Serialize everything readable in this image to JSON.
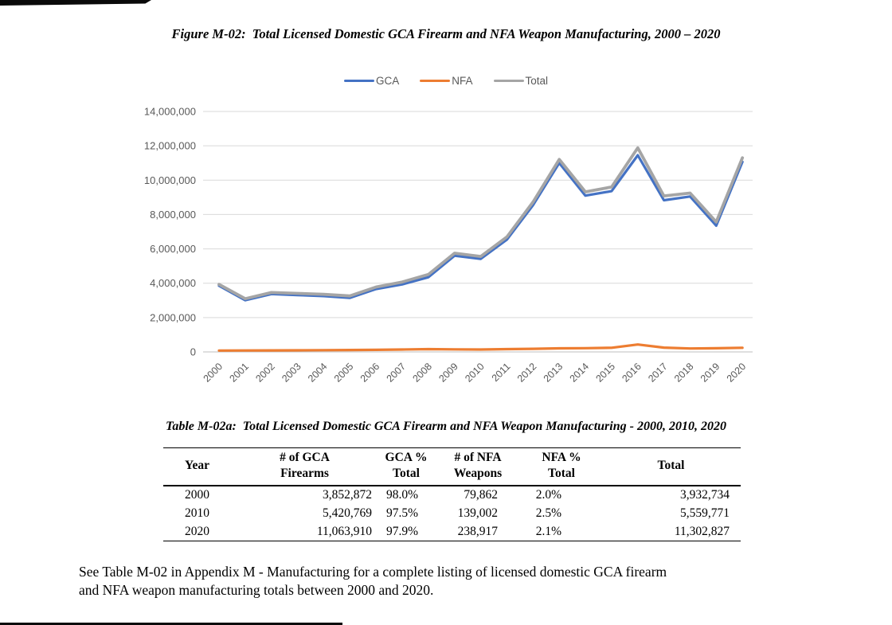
{
  "page": {
    "figure_title": "Figure M-02:  Total Licensed Domestic GCA Firearm and NFA Weapon Manufacturing, 2000 – 2020",
    "table_title": "Table M-02a:  Total Licensed Domestic GCA Firearm and NFA Weapon Manufacturing - 2000, 2010, 2020",
    "note_lines": [
      "See Table M-02 in Appendix M - Manufacturing for a complete listing of licensed domestic GCA firearm",
      "and NFA weapon manufacturing totals between 2000 and 2020."
    ]
  },
  "chart_data": {
    "type": "line",
    "title": "Figure M-02: Total Licensed Domestic GCA Firearm and NFA Weapon Manufacturing, 2000 – 2020",
    "categories": [
      "2000",
      "2001",
      "2002",
      "2003",
      "2004",
      "2005",
      "2006",
      "2007",
      "2008",
      "2009",
      "2010",
      "2011",
      "2012",
      "2013",
      "2014",
      "2015",
      "2016",
      "2017",
      "2018",
      "2019",
      "2020"
    ],
    "series": [
      {
        "name": "GCA",
        "color": "#4472C4",
        "values": [
          3852872,
          3010000,
          3370000,
          3310000,
          3250000,
          3150000,
          3660000,
          3930000,
          4350000,
          5600000,
          5420769,
          6540000,
          8550000,
          11000000,
          9100000,
          9360000,
          11450000,
          8830000,
          9050000,
          7350000,
          11063910
        ]
      },
      {
        "name": "NFA",
        "color": "#ED7D31",
        "values": [
          79862,
          85000,
          90000,
          95000,
          100000,
          110000,
          120000,
          140000,
          160000,
          150000,
          139002,
          160000,
          180000,
          210000,
          220000,
          240000,
          430000,
          250000,
          200000,
          215000,
          238917
        ]
      },
      {
        "name": "Total",
        "color": "#A5A5A5",
        "values": [
          3932734,
          3095000,
          3460000,
          3405000,
          3350000,
          3260000,
          3780000,
          4070000,
          4510000,
          5750000,
          5559771,
          6700000,
          8730000,
          11210000,
          9320000,
          9600000,
          11880000,
          9080000,
          9250000,
          7565000,
          11302827
        ]
      }
    ],
    "ylim": [
      0,
      14000000
    ],
    "y_ticks": [
      0,
      2000000,
      4000000,
      6000000,
      8000000,
      10000000,
      12000000,
      14000000
    ],
    "y_tick_labels": [
      "0",
      "2,000,000",
      "4,000,000",
      "6,000,000",
      "8,000,000",
      "10,000,000",
      "12,000,000",
      "14,000,000"
    ],
    "xlabel": "",
    "ylabel": "",
    "grid": "horizontal",
    "legend_position": "top",
    "text_color": "#595959",
    "grid_color": "#D9D9D9",
    "axis_line_color": "#BFBFBF"
  },
  "table": {
    "columns": [
      "Year",
      "# of GCA\nFirearms",
      "GCA %\nTotal",
      "# of NFA\nWeapons",
      "NFA %\nTotal",
      "Total"
    ],
    "rows": [
      [
        "2000",
        "3,852,872",
        "98.0%",
        "79,862",
        "2.0%",
        "3,932,734"
      ],
      [
        "2010",
        "5,420,769",
        "97.5%",
        "139,002",
        "2.5%",
        "5,559,771"
      ],
      [
        "2020",
        "11,063,910",
        "97.9%",
        "238,917",
        "2.1%",
        "11,302,827"
      ]
    ]
  }
}
